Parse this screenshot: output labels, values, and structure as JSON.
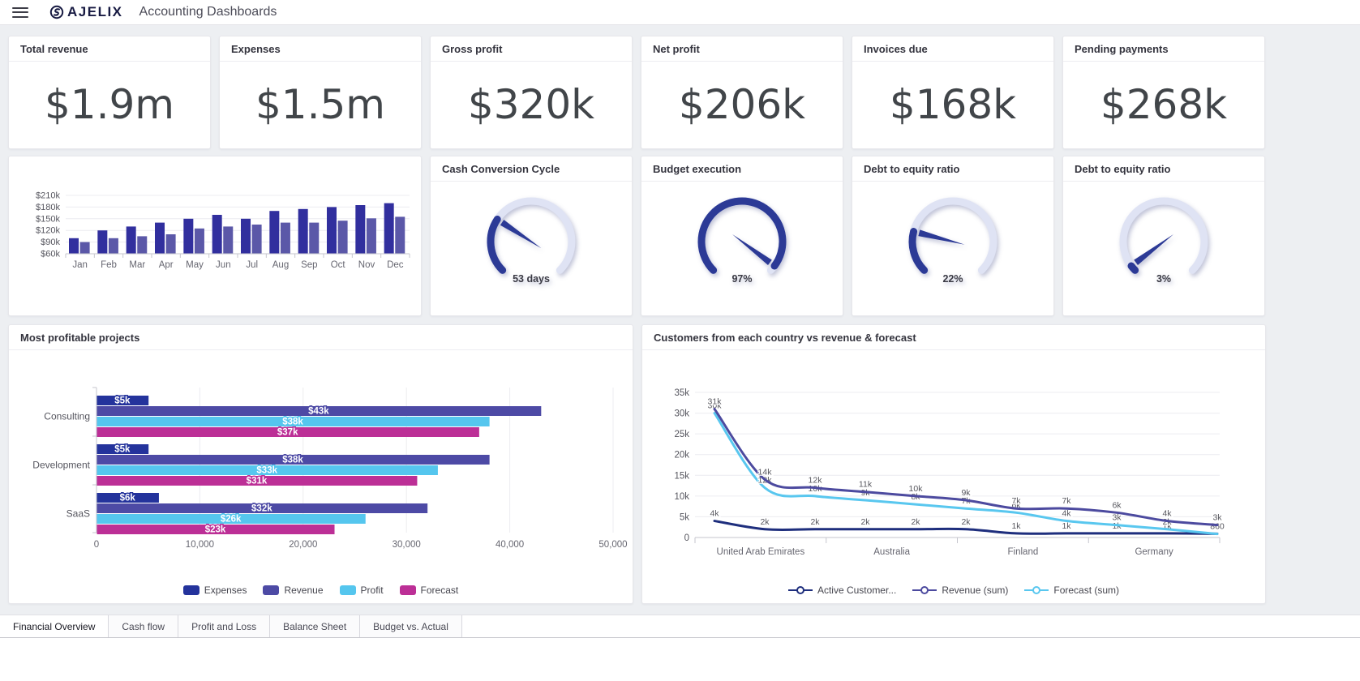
{
  "header": {
    "menu_icon": "hamburger-icon",
    "logo_text": "AJELIX",
    "title": "Accounting Dashboards"
  },
  "kpi_cards": [
    {
      "title": "Total revenue",
      "value": "$1.9m"
    },
    {
      "title": "Expenses",
      "value": "$1.5m"
    },
    {
      "title": "Gross profit",
      "value": "$320k"
    },
    {
      "title": "Net profit",
      "value": "$206k"
    },
    {
      "title": "Invoices due",
      "value": "$168k"
    },
    {
      "title": "Pending payments",
      "value": "$268k"
    }
  ],
  "gauge_cards": [
    {
      "title": "Cash Conversion Cycle",
      "label": "53 days",
      "fraction": 0.29
    },
    {
      "title": "Budget execution",
      "label": "97%",
      "fraction": 0.97
    },
    {
      "title": "Debt to equity ratio",
      "label": "22%",
      "fraction": 0.22
    },
    {
      "title": "Debt to equity ratio",
      "label": "3%",
      "fraction": 0.03
    }
  ],
  "chart_data": [
    {
      "id": "monthly-revenue-bars",
      "type": "bar",
      "categories": [
        "Jan",
        "Feb",
        "Mar",
        "Apr",
        "May",
        "Jun",
        "Jul",
        "Aug",
        "Sep",
        "Oct",
        "Nov",
        "Dec"
      ],
      "series": [
        {
          "color": "#312f9e",
          "values": [
            100,
            120,
            130,
            140,
            150,
            160,
            150,
            170,
            175,
            180,
            185,
            190
          ]
        },
        {
          "color": "#5b58a8",
          "values": [
            90,
            100,
            105,
            110,
            125,
            130,
            135,
            140,
            140,
            145,
            151,
            155
          ]
        }
      ],
      "unit": "k",
      "ylim": [
        60,
        210
      ],
      "yticks": [
        {
          "value": 210,
          "label": "$210k"
        },
        {
          "value": 180,
          "label": "$180k"
        },
        {
          "value": 150,
          "label": "$150k"
        },
        {
          "value": 120,
          "label": "$120k"
        },
        {
          "value": 90,
          "label": "$90k"
        },
        {
          "value": 60,
          "label": "$60k"
        }
      ]
    },
    {
      "id": "most-profitable-projects",
      "type": "bar",
      "orientation": "horizontal",
      "title": "Most profitable projects",
      "categories": [
        "Consulting",
        "Development",
        "SaaS"
      ],
      "series": [
        {
          "name": "Expenses",
          "color": "#24339c",
          "values": [
            5000,
            5000,
            6000
          ],
          "labels": [
            "$5k",
            "$5k",
            "$6k"
          ]
        },
        {
          "name": "Revenue",
          "color": "#4d4aa5",
          "values": [
            43000,
            38000,
            32000
          ],
          "labels": [
            "$43k",
            "$38k",
            "$32k"
          ]
        },
        {
          "name": "Profit",
          "color": "#55c6ee",
          "values": [
            38000,
            33000,
            26000
          ],
          "labels": [
            "$38k",
            "$33k",
            "$26k"
          ]
        },
        {
          "name": "Forecast",
          "color": "#bc2f96",
          "values": [
            37000,
            31000,
            23000
          ],
          "labels": [
            "$37k",
            "$31k",
            "$23k"
          ]
        }
      ],
      "xlim": [
        0,
        50000
      ],
      "xticks": [
        {
          "value": 0,
          "label": "0"
        },
        {
          "value": 10000,
          "label": "10,000"
        },
        {
          "value": 20000,
          "label": "20,000"
        },
        {
          "value": 30000,
          "label": "30,000"
        },
        {
          "value": 40000,
          "label": "40,000"
        },
        {
          "value": 50000,
          "label": "50,000"
        }
      ]
    },
    {
      "id": "customers-by-country",
      "type": "line",
      "title": "Customers from each country vs revenue & forecast",
      "x_section_labels": [
        "United Arab Emirates",
        "Australia",
        "Finland",
        "Germany"
      ],
      "ylim": [
        0,
        35000
      ],
      "yticks": [
        {
          "value": 35000,
          "label": "35k"
        },
        {
          "value": 30000,
          "label": "30k"
        },
        {
          "value": 25000,
          "label": "25k"
        },
        {
          "value": 20000,
          "label": "20k"
        },
        {
          "value": 15000,
          "label": "15k"
        },
        {
          "value": 10000,
          "label": "10k"
        },
        {
          "value": 5000,
          "label": "5k"
        },
        {
          "value": 0,
          "label": "0"
        }
      ],
      "series": [
        {
          "name": "Active Customer...",
          "color": "#1e2e7d",
          "values": [
            4000,
            2000,
            2000,
            2000,
            2000,
            2000,
            1000,
            1000,
            1000,
            1000,
            900
          ],
          "labels": [
            "4k",
            "2k",
            "2k",
            "2k",
            "2k",
            "2k",
            "1k",
            "1k",
            "1k",
            "1k",
            ""
          ]
        },
        {
          "name": "Revenue (sum)",
          "color": "#4c4a9f",
          "values": [
            31000,
            14000,
            12000,
            11000,
            10000,
            9000,
            7000,
            7000,
            6000,
            4000,
            3000
          ],
          "labels": [
            "31k",
            "14k",
            "12k",
            "11k",
            "10k",
            "9k",
            "7k",
            "7k",
            "6k",
            "4k",
            "3k"
          ]
        },
        {
          "name": "Forecast (sum)",
          "color": "#59c7ef",
          "values": [
            30000,
            12000,
            10000,
            9000,
            8000,
            7000,
            6000,
            4000,
            3000,
            2000,
            860
          ],
          "labels": [
            "30k",
            "12k",
            "10k",
            "9k",
            "8k",
            "7k",
            "6k",
            "4k",
            "3k",
            "2k",
            "860"
          ]
        }
      ]
    }
  ],
  "tabs": [
    {
      "label": "Financial Overview",
      "active": true
    },
    {
      "label": "Cash flow",
      "active": false
    },
    {
      "label": "Profit and Loss",
      "active": false
    },
    {
      "label": "Balance Sheet",
      "active": false
    },
    {
      "label": "Budget vs. Actual",
      "active": false
    }
  ],
  "colors": {
    "gauge_fill": "#2c3a96",
    "gauge_track": "#dfe3f4",
    "axis_line": "#c6c6cd",
    "grid_line": "#ececf0",
    "tick_text": "#55555e",
    "cat_text": "#666670"
  }
}
